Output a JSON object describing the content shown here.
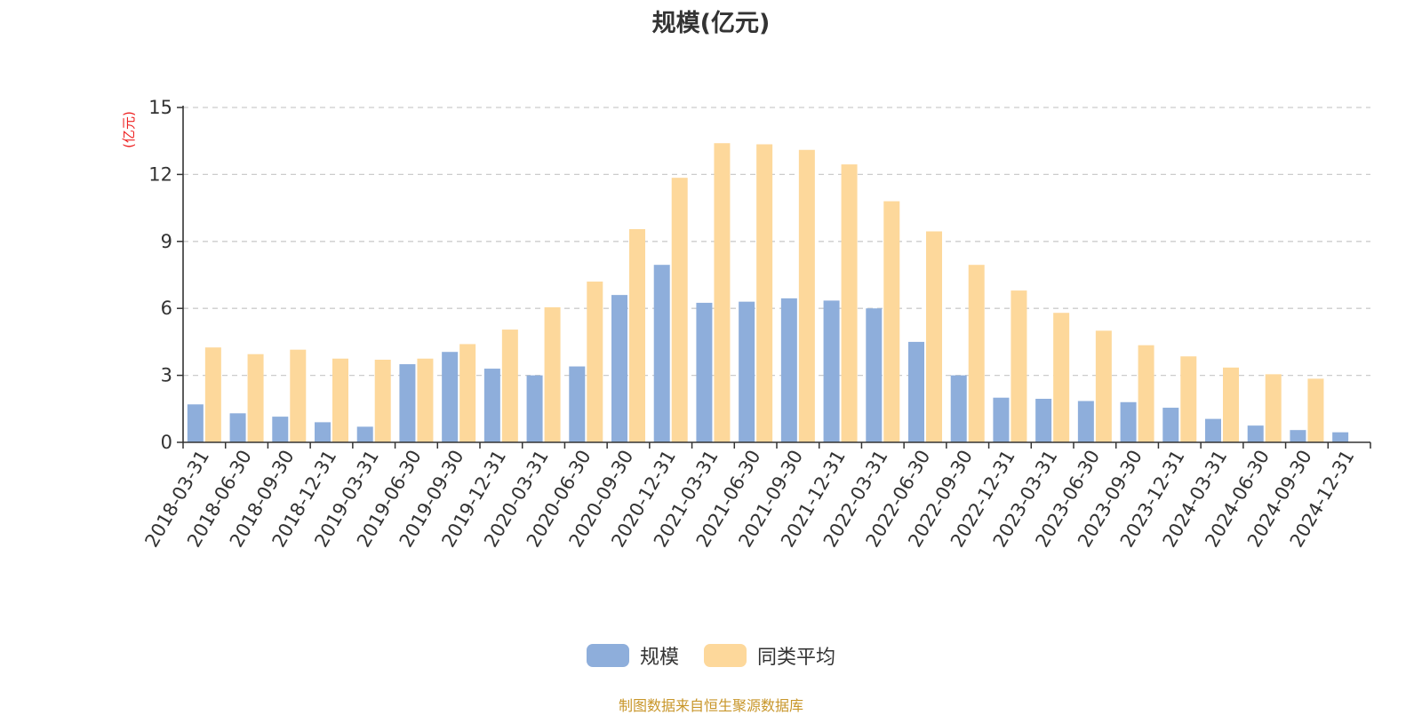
{
  "chart_data": {
    "type": "bar",
    "title": "规模(亿元)",
    "ylabel": "(亿元)",
    "xlabel": "",
    "ylim": [
      0,
      15
    ],
    "yticks": [
      0,
      3,
      6,
      9,
      12,
      15
    ],
    "grid": true,
    "legend_position": "bottom",
    "categories": [
      "2018-03-31",
      "2018-06-30",
      "2018-09-30",
      "2018-12-31",
      "2019-03-31",
      "2019-06-30",
      "2019-09-30",
      "2019-12-31",
      "2020-03-31",
      "2020-06-30",
      "2020-09-30",
      "2020-12-31",
      "2021-03-31",
      "2021-06-30",
      "2021-09-30",
      "2021-12-31",
      "2022-03-31",
      "2022-06-30",
      "2022-09-30",
      "2022-12-31",
      "2023-03-31",
      "2023-06-30",
      "2023-09-30",
      "2023-12-31",
      "2024-03-31",
      "2024-06-30",
      "2024-09-30",
      "2024-12-31"
    ],
    "series": [
      {
        "name": "规模",
        "color": "#8eaedb",
        "values": [
          1.7,
          1.3,
          1.15,
          0.9,
          0.7,
          3.5,
          4.05,
          3.3,
          3.0,
          3.4,
          6.6,
          7.95,
          6.25,
          6.3,
          6.45,
          6.35,
          6.0,
          4.5,
          3.0,
          2.0,
          1.95,
          1.85,
          1.8,
          1.55,
          1.05,
          0.75,
          0.55,
          0.45
        ]
      },
      {
        "name": "同类平均",
        "color": "#fdd89b",
        "values": [
          4.25,
          3.95,
          4.15,
          3.75,
          3.7,
          3.75,
          4.4,
          5.05,
          6.05,
          7.2,
          9.55,
          11.85,
          13.4,
          13.35,
          13.1,
          12.45,
          10.8,
          9.45,
          7.95,
          6.8,
          5.8,
          5.0,
          4.35,
          3.85,
          3.35,
          3.05,
          2.85,
          null
        ]
      }
    ]
  },
  "source_note": "制图数据来自恒生聚源数据库"
}
